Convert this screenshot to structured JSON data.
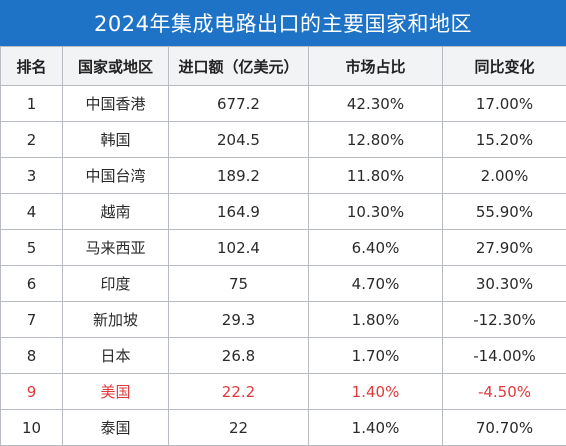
{
  "title": "2024年集成电路出口的主要国家和地区",
  "headers": [
    "排名",
    "国家或地区",
    "进口额（亿美元）",
    "市场占比",
    "同比变化"
  ],
  "rows": [
    {
      "rank": "1",
      "region": "中国香港",
      "amount": "677.2",
      "share": "42.30%",
      "change": "17.00%"
    },
    {
      "rank": "2",
      "region": "韩国",
      "amount": "204.5",
      "share": "12.80%",
      "change": "15.20%"
    },
    {
      "rank": "3",
      "region": "中国台湾",
      "amount": "189.2",
      "share": "11.80%",
      "change": "2.00%"
    },
    {
      "rank": "4",
      "region": "越南",
      "amount": "164.9",
      "share": "10.30%",
      "change": "55.90%"
    },
    {
      "rank": "5",
      "region": "马来西亚",
      "amount": "102.4",
      "share": "6.40%",
      "change": "27.90%"
    },
    {
      "rank": "6",
      "region": "印度",
      "amount": "75",
      "share": "4.70%",
      "change": "30.30%"
    },
    {
      "rank": "7",
      "region": "新加坡",
      "amount": "29.3",
      "share": "1.80%",
      "change": "-12.30%"
    },
    {
      "rank": "8",
      "region": "日本",
      "amount": "26.8",
      "share": "1.70%",
      "change": "-14.00%"
    },
    {
      "rank": "9",
      "region": "美国",
      "amount": "22.2",
      "share": "1.40%",
      "change": "-4.50%"
    },
    {
      "rank": "10",
      "region": "泰国",
      "amount": "22",
      "share": "1.40%",
      "change": "70.70%"
    }
  ],
  "highlight_color": "#e0393b",
  "title_bg_color": "#1e73c6"
}
